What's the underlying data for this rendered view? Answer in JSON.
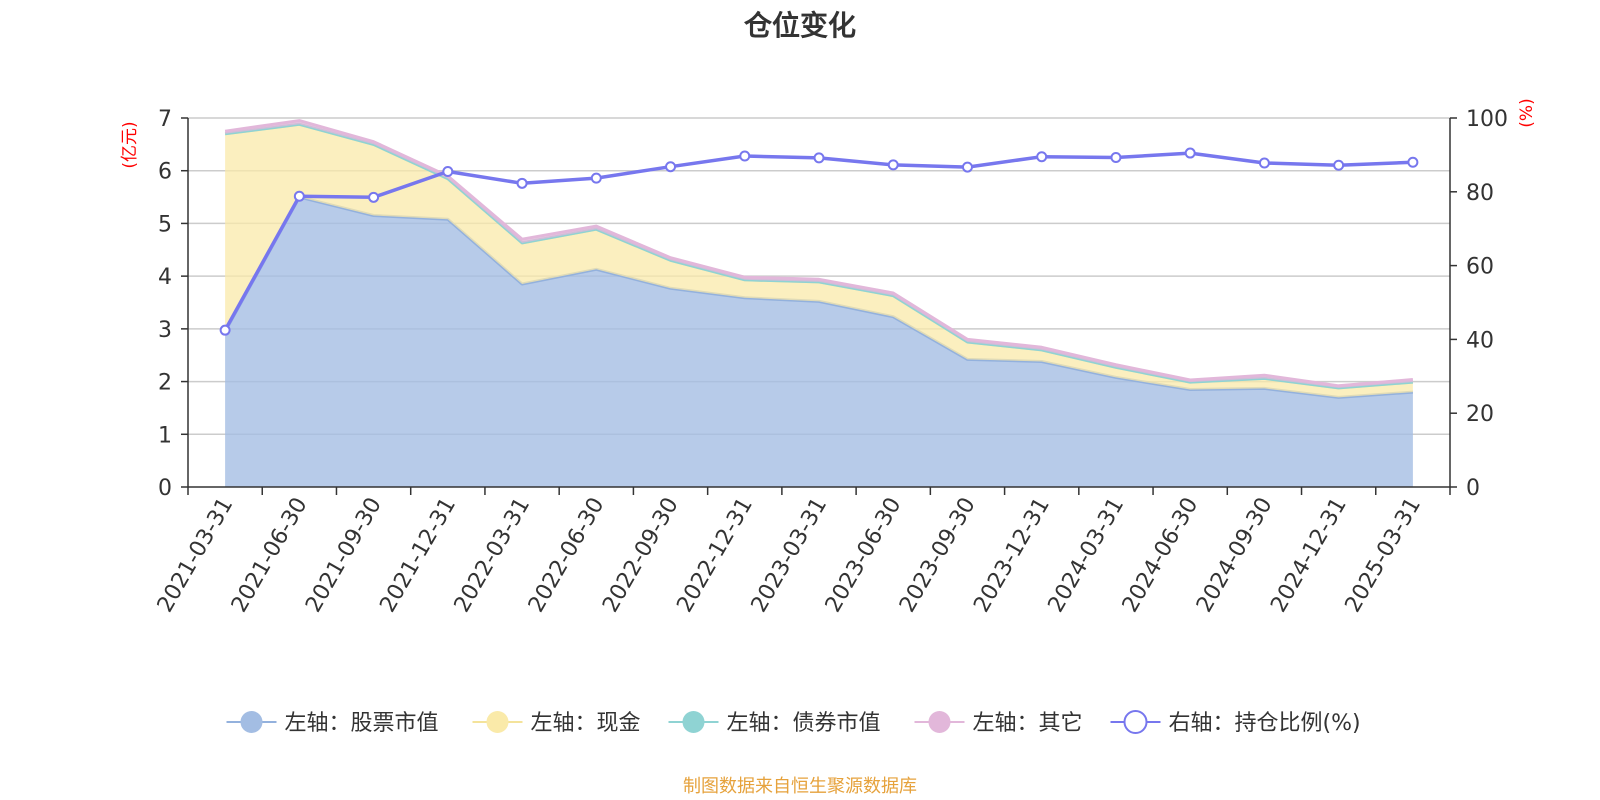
{
  "title": "仓位变化",
  "source_note": "制图数据来自恒生聚源数据库",
  "colors": {
    "stock": "#a3bde3",
    "stock_line": "#93b1dd",
    "cash": "#faeaa9",
    "cash_line": "#f4e39b",
    "bond": "#8fd3d3",
    "other": "#e2b7da",
    "ratio": "#7777ee",
    "grid": "#cccccc",
    "axis_unit": "#ff0000",
    "source": "#e6a23c"
  },
  "chart_data": {
    "type": "area",
    "title": "仓位变化",
    "x": [
      "2021-03-31",
      "2021-06-30",
      "2021-09-30",
      "2021-12-31",
      "2022-03-31",
      "2022-06-30",
      "2022-09-30",
      "2022-12-31",
      "2023-03-31",
      "2023-06-30",
      "2023-09-30",
      "2023-12-31",
      "2024-03-31",
      "2024-06-30",
      "2024-09-30",
      "2024-12-31",
      "2025-03-31"
    ],
    "left_axis": {
      "label": "(亿元)",
      "ylim": [
        0,
        7
      ],
      "ticks": [
        0,
        1,
        2,
        3,
        4,
        5,
        6,
        7
      ]
    },
    "right_axis": {
      "label": "(%)",
      "ylim": [
        0,
        100
      ],
      "ticks": [
        0,
        20,
        40,
        60,
        80,
        100
      ]
    },
    "series": [
      {
        "name": "左轴：股票市值",
        "axis": "left",
        "stacked": true,
        "values": [
          2.95,
          5.5,
          5.15,
          5.08,
          3.85,
          4.13,
          3.77,
          3.59,
          3.52,
          3.23,
          2.42,
          2.38,
          2.08,
          1.85,
          1.87,
          1.7,
          1.8
        ]
      },
      {
        "name": "左轴：现金",
        "axis": "left",
        "stacked": true,
        "values": [
          3.75,
          1.38,
          1.35,
          0.77,
          0.78,
          0.76,
          0.53,
          0.34,
          0.37,
          0.4,
          0.33,
          0.22,
          0.19,
          0.14,
          0.19,
          0.18,
          0.19
        ]
      },
      {
        "name": "左轴：债券市值",
        "axis": "left",
        "stacked": true,
        "values": [
          0,
          0,
          0,
          0,
          0,
          0,
          0,
          0,
          0,
          0,
          0,
          0,
          0,
          0,
          0,
          0,
          0
        ]
      },
      {
        "name": "左轴：其它",
        "axis": "left",
        "stacked": true,
        "values": [
          0.05,
          0.07,
          0.05,
          0.05,
          0.07,
          0.06,
          0.05,
          0.05,
          0.05,
          0.05,
          0.05,
          0.05,
          0.05,
          0.04,
          0.06,
          0.04,
          0.05
        ]
      },
      {
        "name": "右轴：持仓比例(%)",
        "axis": "right",
        "type": "line",
        "values": [
          42.5,
          78.8,
          78.5,
          85.5,
          82.3,
          83.7,
          86.8,
          89.7,
          89.2,
          87.3,
          86.7,
          89.5,
          89.3,
          90.5,
          87.8,
          87.2,
          88.0
        ]
      }
    ],
    "legend_position": "bottom",
    "grid": true
  }
}
